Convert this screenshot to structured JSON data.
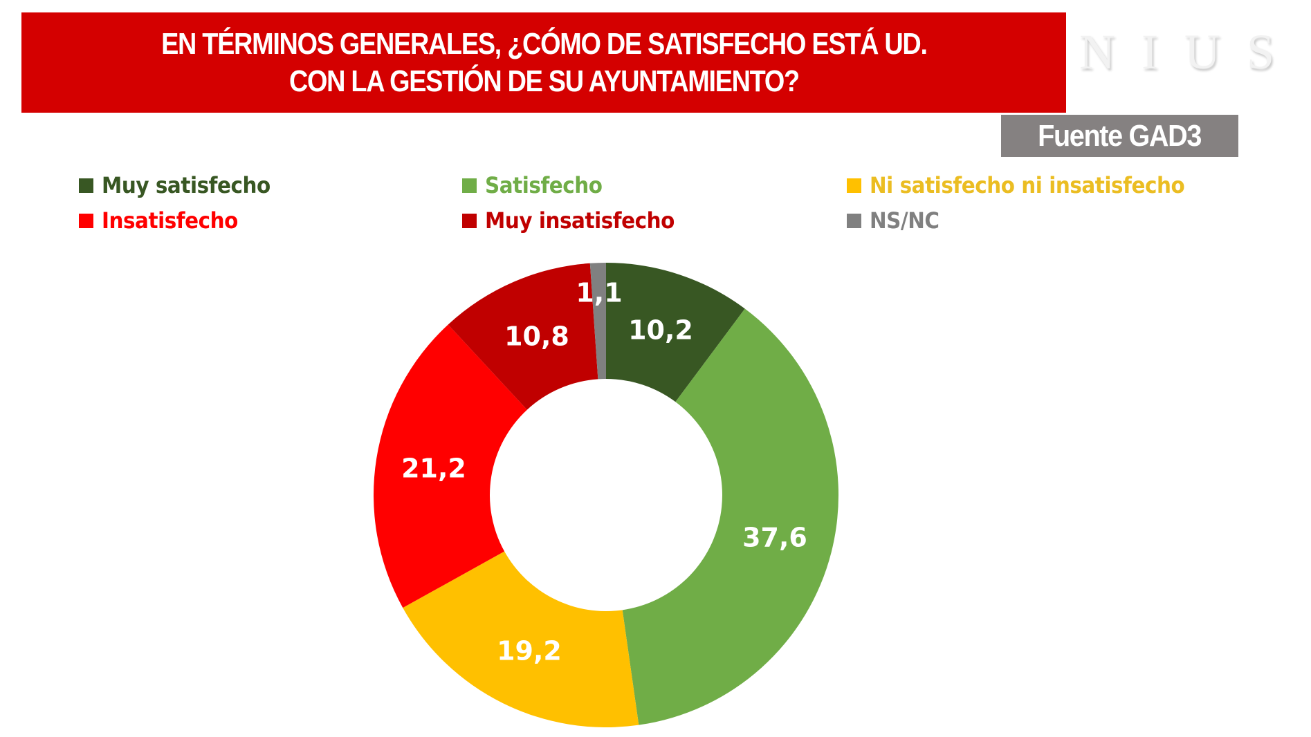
{
  "header": {
    "title": "EN TÉRMINOS GENERALES, ¿CÓMO DE SATISFECHO ESTÁ UD.\nCON LA GESTIÓN DE SU AYUNTAMIENTO?",
    "watermark": "NIUS",
    "source": "Fuente GAD3"
  },
  "colors": {
    "banner": "#d40000",
    "source_box": "#858181",
    "muy_satisfecho": "#385723",
    "satisfecho": "#70ad47",
    "ni_ni": "#ffc000",
    "insatisfecho": "#ff0000",
    "muy_insatisfecho": "#c00000",
    "nsnc": "#808080"
  },
  "legend": [
    {
      "label": "Muy satisfecho",
      "color": "#385723",
      "text_color": "#385723"
    },
    {
      "label": "Satisfecho",
      "color": "#70ad47",
      "text_color": "#70ad47"
    },
    {
      "label": "Ni satisfecho ni insatisfecho",
      "color": "#ffc000",
      "text_color": "#ebbd22"
    },
    {
      "label": "Insatisfecho",
      "color": "#ff0000",
      "text_color": "#ff0000"
    },
    {
      "label": "Muy insatisfecho",
      "color": "#c00000",
      "text_color": "#c00000"
    },
    {
      "label": "NS/NC",
      "color": "#808080",
      "text_color": "#808080"
    }
  ],
  "chart_data": {
    "type": "pie",
    "variant": "donut",
    "title": "EN TÉRMINOS GENERALES, ¿CÓMO DE SATISFECHO ESTÁ UD. CON LA GESTIÓN DE SU AYUNTAMIENTO?",
    "source": "Fuente GAD3",
    "categories": [
      "Muy satisfecho",
      "Satisfecho",
      "Ni satisfecho ni insatisfecho",
      "Insatisfecho",
      "Muy insatisfecho",
      "NS/NC"
    ],
    "values": [
      10.2,
      37.6,
      19.2,
      21.2,
      10.8,
      1.1
    ],
    "value_labels": [
      "10,2",
      "37,6",
      "19,2",
      "21,2",
      "10,8",
      "1,1"
    ],
    "colors": [
      "#385723",
      "#70ad47",
      "#ffc000",
      "#ff0000",
      "#c00000",
      "#808080"
    ],
    "start_angle": "12 o'clock",
    "direction": "clockwise",
    "legend_position": "top",
    "unit": "%"
  }
}
